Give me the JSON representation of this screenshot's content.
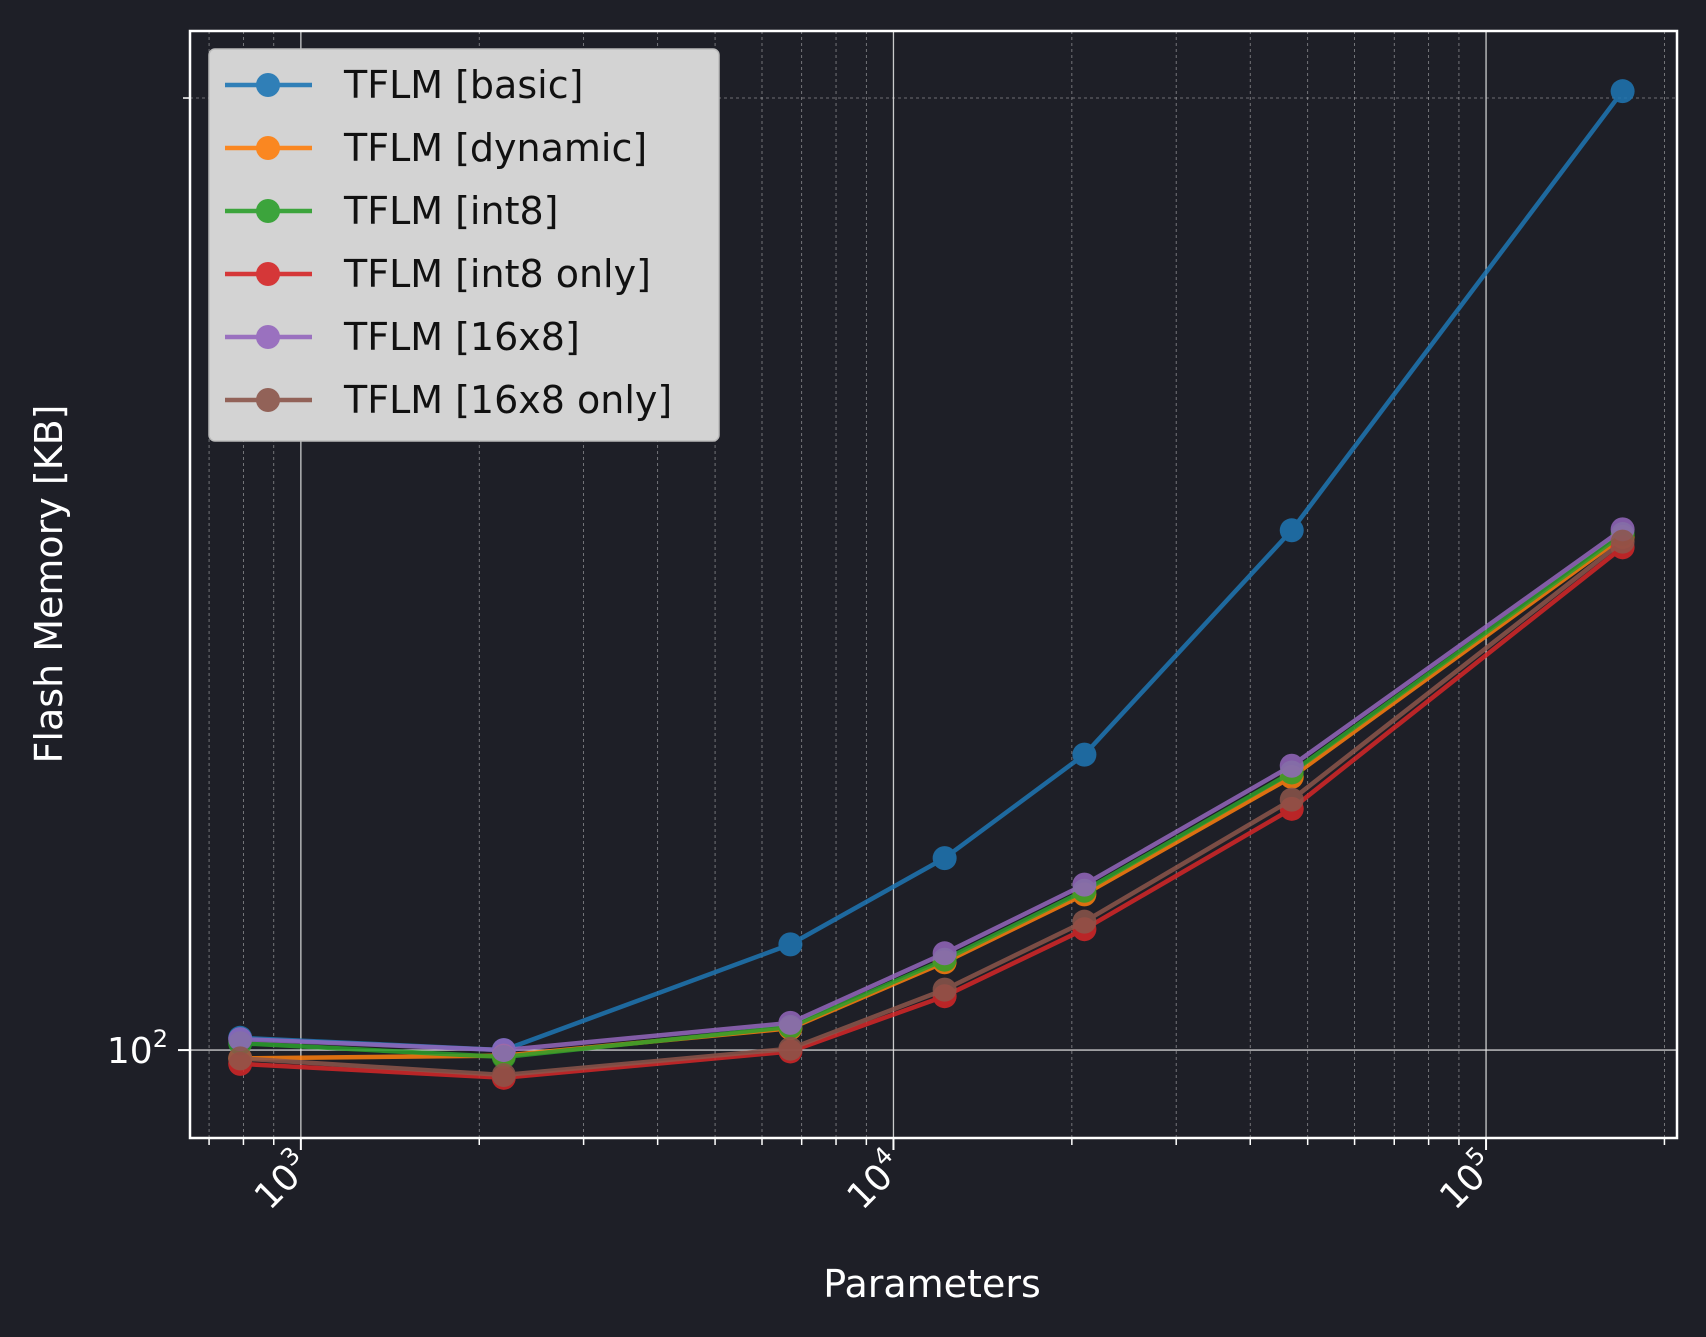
{
  "chart_data": {
    "type": "line",
    "xlabel": "Parameters",
    "ylabel": "Flash Memory [KB]",
    "x_scale": "log",
    "y_scale": "log",
    "xlim": [
      650,
      210000
    ],
    "ylim": [
      93.8,
      210
    ],
    "x_ticks": [
      {
        "base": "10",
        "exp": "3",
        "value": 1000
      },
      {
        "base": "10",
        "exp": "4",
        "value": 10000
      },
      {
        "base": "10",
        "exp": "5",
        "value": 100000
      }
    ],
    "y_ticks": [
      {
        "base": "10",
        "exp": "2",
        "value": 100
      }
    ],
    "grid": true,
    "legend_position": "top-left",
    "x": [
      790,
      2200,
      6700,
      12200,
      21000,
      47000,
      170000
    ],
    "series": [
      {
        "name": "TFLM [basic]",
        "color": "#1f77b4",
        "values": [
          100.9,
          100.0,
          108.0,
          115.0,
          124.0,
          146.0,
          201.0
        ]
      },
      {
        "name": "TFLM [dynamic]",
        "color": "#ff7f0e",
        "values": [
          99.4,
          99.6,
          101.6,
          106.6,
          112.0,
          122.0,
          145.3
        ]
      },
      {
        "name": "TFLM [int8]",
        "color": "#2ca02c",
        "values": [
          100.5,
          99.5,
          101.7,
          106.8,
          112.3,
          122.4,
          145.6
        ]
      },
      {
        "name": "TFLM [int8 only]",
        "color": "#d62728",
        "values": [
          99.0,
          98.0,
          99.9,
          104.0,
          109.2,
          119.2,
          144.2
        ]
      },
      {
        "name": "TFLM [16x8]",
        "color": "#9467bd",
        "values": [
          100.8,
          100.0,
          102.0,
          107.3,
          112.8,
          123.0,
          146.1
        ]
      },
      {
        "name": "TFLM [16x8 only]",
        "color": "#8c564b",
        "values": [
          99.4,
          98.2,
          100.1,
          104.5,
          109.8,
          120.0,
          144.8
        ]
      }
    ]
  }
}
